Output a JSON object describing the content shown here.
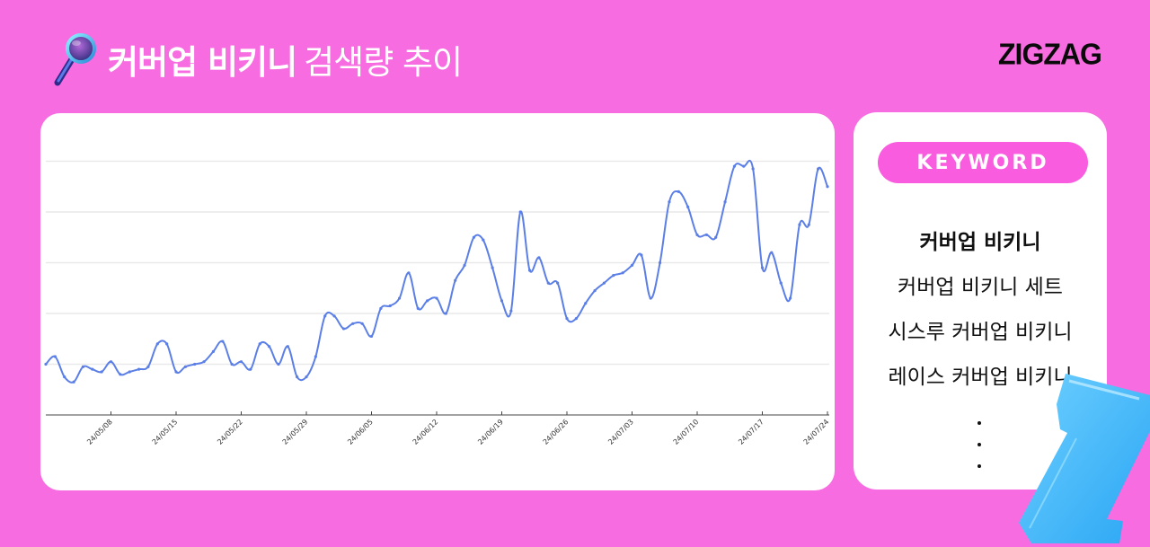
{
  "header": {
    "icon": "magnifier-icon",
    "title_strong": "커버업 비키니",
    "title_light": "검색량 추이"
  },
  "brand": {
    "logo_text": "ZIGZAG"
  },
  "colors": {
    "background": "#f76ce0",
    "pill": "#fa5ce0",
    "line": "#5b7fe6",
    "card": "#ffffff"
  },
  "keyword_panel": {
    "pill_label": "KEYWORD",
    "items": [
      {
        "label": "커버업 비키니",
        "active": true
      },
      {
        "label": "커버업 비키니 세트",
        "active": false
      },
      {
        "label": "시스루 커버업 비키니",
        "active": false
      },
      {
        "label": "레이스 커버업 비키니",
        "active": false
      }
    ],
    "more": "⋮"
  },
  "chart_data": {
    "type": "line",
    "title": "커버업 비키니 검색량 추이",
    "xlabel": "",
    "ylabel": "",
    "x_ticks": [
      "24/05/08",
      "24/05/15",
      "24/05/22",
      "24/05/29",
      "24/06/05",
      "24/06/12",
      "24/06/19",
      "24/06/26",
      "24/07/03",
      "24/07/10",
      "24/07/17",
      "24/07/24"
    ],
    "ylim": [
      0,
      100
    ],
    "y_gridlines": [
      20,
      40,
      60,
      80,
      100
    ],
    "grid": true,
    "legend": "none",
    "x_start": "24/05/01",
    "x_end": "24/07/24",
    "series": [
      {
        "name": "커버업 비키니",
        "values": [
          20,
          23,
          15,
          13,
          19,
          18,
          17,
          21,
          16,
          17,
          18,
          19,
          28,
          28,
          17,
          19,
          20,
          21,
          25,
          29,
          20,
          21,
          18,
          28,
          27,
          20,
          27,
          15,
          15,
          23,
          39,
          39,
          34,
          36,
          36,
          31,
          42,
          43,
          46,
          56,
          42,
          45,
          46,
          40,
          53,
          59,
          70,
          69,
          58,
          45,
          41,
          80,
          57,
          62,
          52,
          52,
          38,
          38,
          44,
          49,
          52,
          55,
          56,
          59,
          63,
          46,
          60,
          84,
          88,
          82,
          71,
          71,
          70,
          84,
          98,
          98,
          97,
          58,
          64,
          52,
          46,
          75,
          75,
          97,
          90
        ]
      }
    ]
  }
}
